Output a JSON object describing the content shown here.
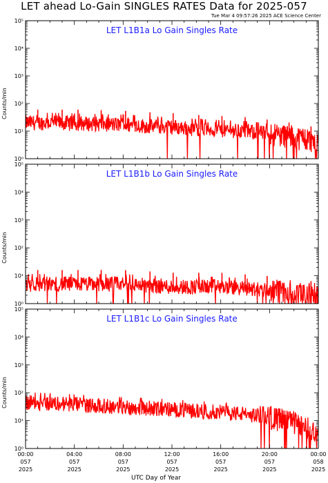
{
  "header": {
    "title": "LET ahead Lo-Gain SINGLES RATES Data for 2025-057",
    "timestamp": "Tue Mar  4 09:57:26 2025 ACE Science Center"
  },
  "colors": {
    "data": "#ff0000",
    "panel_title": "#1a1aff",
    "axes": "#000000"
  },
  "chart_data": [
    {
      "type": "line",
      "title": "LET L1B1a Lo Gain Singles Rate",
      "ylabel": "Counts/min",
      "yscale": "log",
      "ylim": [
        1,
        100000
      ],
      "y_tick_labels": [
        "10⁰",
        "10¹",
        "10²",
        "10³",
        "10⁴",
        "10⁵"
      ],
      "xlim_hours": [
        0,
        24
      ],
      "series": [
        {
          "x_hours": [
            0,
            2,
            4,
            6,
            8,
            10,
            12,
            14,
            16,
            18,
            20,
            22,
            23,
            24
          ],
          "values": [
            20,
            20,
            19,
            18,
            17,
            15,
            14,
            12,
            11,
            10,
            8,
            6,
            5,
            4
          ]
        }
      ],
      "spikes_hours": [
        1.0,
        3.0,
        4.3,
        6.2,
        8.2,
        10.2,
        12.1,
        14.2,
        16.1,
        18.0,
        19.8,
        21.6,
        23.4
      ]
    },
    {
      "type": "line",
      "title": "LET L1B1b Lo Gain Singles Rate",
      "ylabel": "Counts/min",
      "yscale": "log",
      "ylim": [
        1,
        100000
      ],
      "y_tick_labels": [
        "10⁰",
        "10¹",
        "10²",
        "10³",
        "10⁴",
        "10⁵"
      ],
      "xlim_hours": [
        0,
        24
      ],
      "series": [
        {
          "x_hours": [
            0,
            4,
            8,
            12,
            16,
            20,
            22,
            24
          ],
          "values": [
            5,
            5,
            5,
            4,
            4,
            3,
            2,
            2
          ]
        }
      ],
      "spikes_hours": [
        1.0,
        3.0,
        4.3,
        6.2,
        8.2,
        10.2,
        12.1,
        14.2,
        16.1,
        18.0,
        19.8,
        21.7,
        23.4
      ]
    },
    {
      "type": "line",
      "title": "LET L1B1c Lo Gain Singles Rate",
      "ylabel": "Counts/min",
      "yscale": "log",
      "ylim": [
        1,
        100000
      ],
      "y_tick_labels": [
        "10⁰",
        "10¹",
        "10²",
        "10³",
        "10⁴",
        "10⁵"
      ],
      "xlim_hours": [
        0,
        24
      ],
      "series": [
        {
          "x_hours": [
            0,
            2,
            4,
            6,
            8,
            10,
            12,
            14,
            16,
            18,
            20,
            22,
            23,
            24
          ],
          "values": [
            45,
            42,
            38,
            34,
            30,
            28,
            25,
            22,
            20,
            17,
            13,
            8,
            5,
            4
          ]
        }
      ],
      "spikes_hours": []
    }
  ],
  "x_axis": {
    "title": "UTC Day of Year",
    "ticks": [
      {
        "time": "00:00",
        "day": "057",
        "year": "2025"
      },
      {
        "time": "04:00",
        "day": "057",
        "year": "2025"
      },
      {
        "time": "08:00",
        "day": "057",
        "year": "2025"
      },
      {
        "time": "12:00",
        "day": "057",
        "year": "2025"
      },
      {
        "time": "16:00",
        "day": "057",
        "year": "2025"
      },
      {
        "time": "20:00",
        "day": "057",
        "year": "2025"
      },
      {
        "time": "00:00",
        "day": "058",
        "year": "2025"
      }
    ]
  }
}
